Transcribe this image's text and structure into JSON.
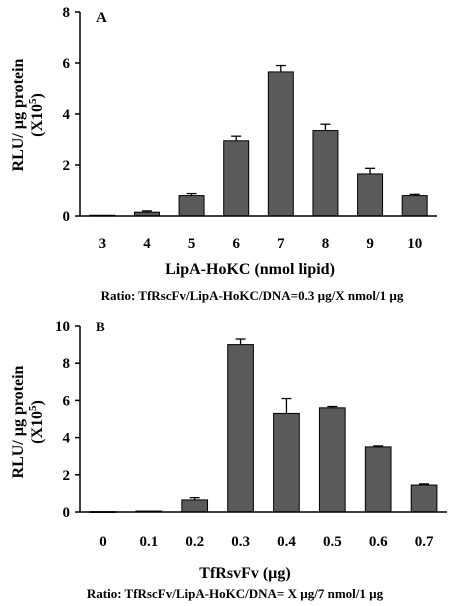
{
  "chart_data": [
    {
      "type": "bar",
      "panel_label": "A",
      "categories": [
        "3",
        "4",
        "5",
        "6",
        "7",
        "8",
        "9",
        "10"
      ],
      "values": [
        0.03,
        0.15,
        0.8,
        2.95,
        5.65,
        3.35,
        1.65,
        0.8
      ],
      "errors": [
        0.0,
        0.05,
        0.08,
        0.18,
        0.25,
        0.25,
        0.22,
        0.05
      ],
      "ylim": [
        0,
        8
      ],
      "yticks": [
        "0",
        "2",
        "4",
        "6",
        "8"
      ],
      "ylabel_line1": "RLU/ µg protein",
      "ylabel_line2": "(X10",
      "ylabel_exp": "5",
      "ylabel_close": ")",
      "xlabel": "LipA-HoKC (nmol lipid)",
      "caption": "Ratio: TfRscFv/LipA-HoKC/DNA=0.3 µg/X nmol/1 µg",
      "bar_color": "#5a5a5a",
      "grid": false
    },
    {
      "type": "bar",
      "panel_label": "B",
      "categories": [
        "0",
        "0.1",
        "0.2",
        "0.3",
        "0.4",
        "0.5",
        "0.6",
        "0.7"
      ],
      "values": [
        0.02,
        0.05,
        0.65,
        9.0,
        5.3,
        5.6,
        3.5,
        1.45
      ],
      "errors": [
        0.0,
        0.0,
        0.12,
        0.3,
        0.8,
        0.07,
        0.05,
        0.06
      ],
      "ylim": [
        0,
        10
      ],
      "yticks": [
        "0",
        "2",
        "4",
        "6",
        "8",
        "10"
      ],
      "ylabel_line1": "RLU/ µg protein",
      "ylabel_line2": "(X10",
      "ylabel_exp": "5",
      "ylabel_close": ")",
      "xlabel": "TfRsvFv (µg)",
      "caption": "Ratio: TfRscFv/LipA-HoKC/DNA= X µg/7 nmol/1 µg",
      "bar_color": "#5a5a5a",
      "grid": false
    }
  ]
}
